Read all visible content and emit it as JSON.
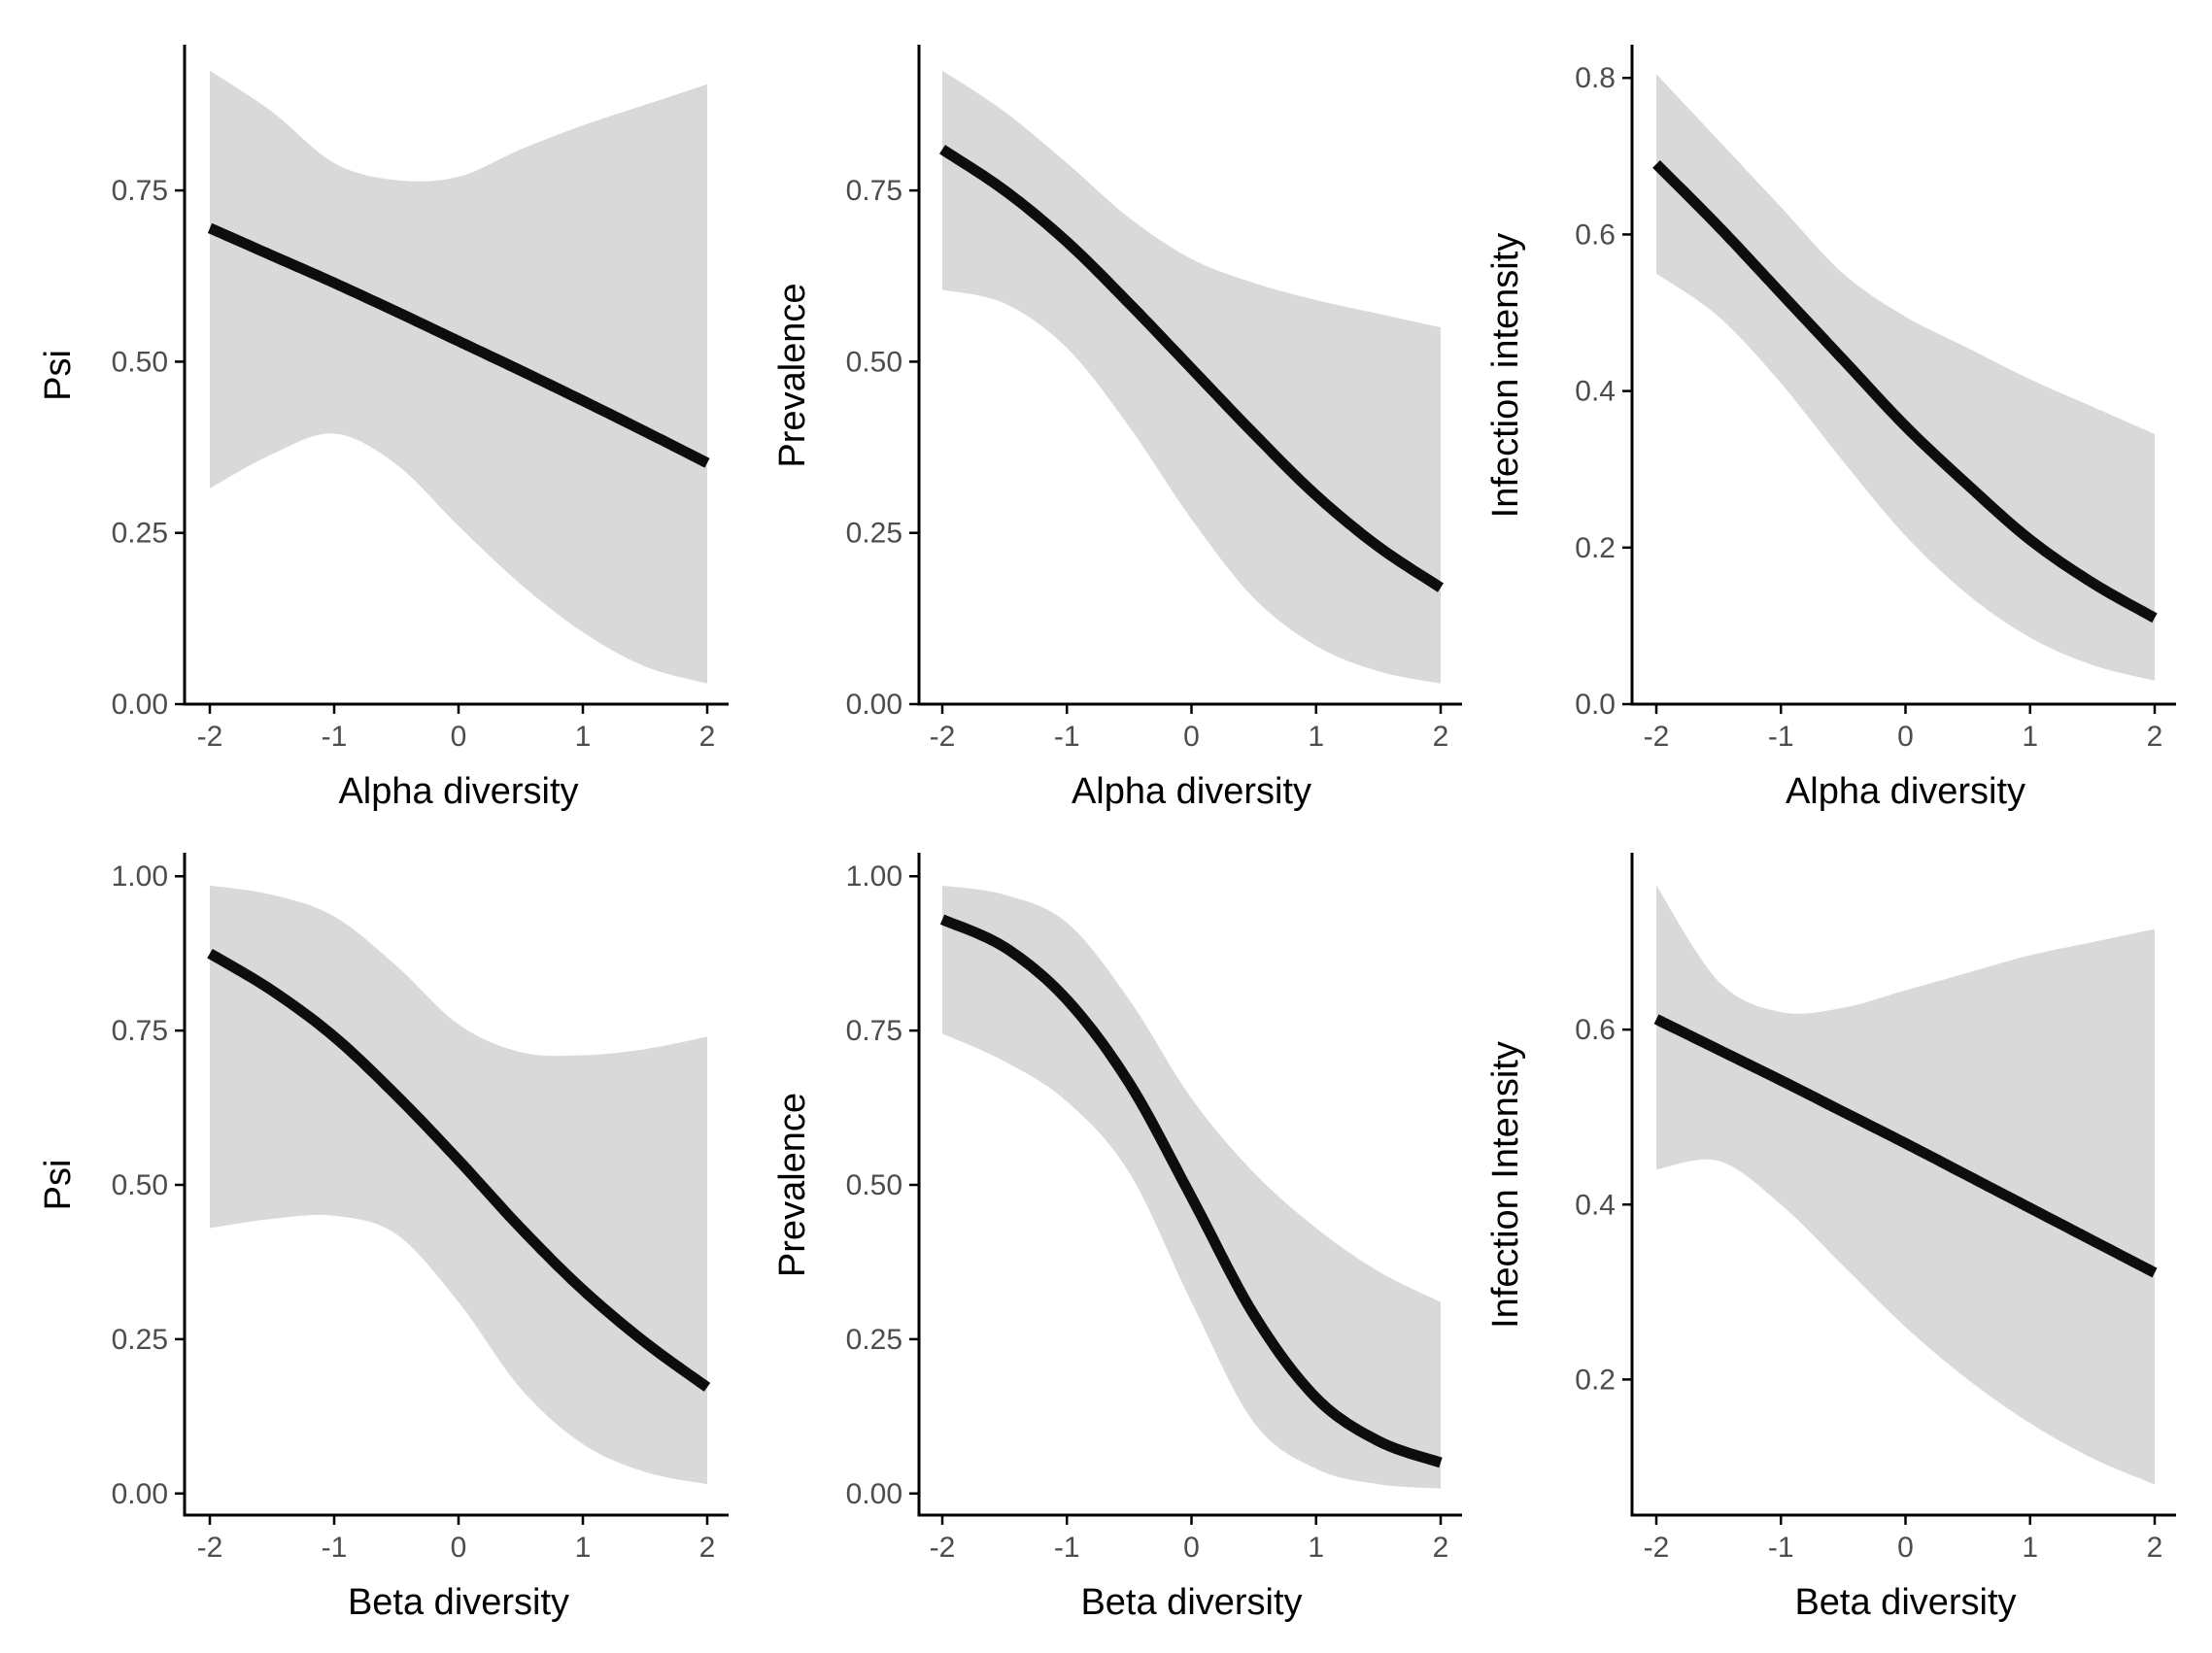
{
  "chart_data": [
    {
      "type": "line",
      "panel": "top-left",
      "xlabel": "Alpha diversity",
      "ylabel": "Psi",
      "xlim": [
        -2.2,
        2.2
      ],
      "ylim": [
        0.0,
        0.96
      ],
      "xticks": [
        -2,
        -1,
        0,
        1,
        2
      ],
      "xtick_labels": [
        "-2",
        "-1",
        "0",
        "1",
        "2"
      ],
      "yticks": [
        0.0,
        0.25,
        0.5,
        0.75
      ],
      "ytick_labels": [
        "0.00",
        "0.25",
        "0.50",
        "0.75"
      ],
      "grid": false,
      "series": [
        {
          "x": [
            -2,
            -1.5,
            -1,
            -0.5,
            0,
            0.5,
            1,
            1.5,
            2
          ],
          "y": [
            0.695,
            0.655,
            0.615,
            0.573,
            0.53,
            0.487,
            0.443,
            0.398,
            0.352
          ],
          "lower": [
            0.315,
            0.365,
            0.395,
            0.35,
            0.26,
            0.175,
            0.105,
            0.055,
            0.03
          ],
          "upper": [
            0.925,
            0.865,
            0.79,
            0.765,
            0.77,
            0.81,
            0.845,
            0.875,
            0.905
          ]
        }
      ]
    },
    {
      "type": "line",
      "panel": "top-middle",
      "xlabel": "Alpha diversity",
      "ylabel": "Prevalence",
      "xlim": [
        -2.2,
        2.2
      ],
      "ylim": [
        0.0,
        0.96
      ],
      "xticks": [
        -2,
        -1,
        0,
        1,
        2
      ],
      "xtick_labels": [
        "-2",
        "-1",
        "0",
        "1",
        "2"
      ],
      "yticks": [
        0.0,
        0.25,
        0.5,
        0.75
      ],
      "ytick_labels": [
        "0.00",
        "0.25",
        "0.50",
        "0.75"
      ],
      "grid": false,
      "series": [
        {
          "x": [
            -2,
            -1.5,
            -1,
            -0.5,
            0,
            0.5,
            1,
            1.5,
            2
          ],
          "y": [
            0.81,
            0.75,
            0.675,
            0.585,
            0.49,
            0.395,
            0.305,
            0.23,
            0.17
          ],
          "lower": [
            0.605,
            0.585,
            0.52,
            0.405,
            0.27,
            0.155,
            0.085,
            0.048,
            0.03
          ],
          "upper": [
            0.925,
            0.865,
            0.79,
            0.71,
            0.65,
            0.615,
            0.59,
            0.57,
            0.55
          ]
        }
      ]
    },
    {
      "type": "line",
      "panel": "top-right",
      "xlabel": "Alpha diversity",
      "ylabel": "Infection intensity",
      "xlim": [
        -2.2,
        2.2
      ],
      "ylim": [
        0.0,
        0.84
      ],
      "xticks": [
        -2,
        -1,
        0,
        1,
        2
      ],
      "xtick_labels": [
        "-2",
        "-1",
        "0",
        "1",
        "2"
      ],
      "yticks": [
        0.0,
        0.2,
        0.4,
        0.6,
        0.8
      ],
      "ytick_labels": [
        "0.0",
        "0.2",
        "0.4",
        "0.6",
        "0.8"
      ],
      "grid": false,
      "series": [
        {
          "x": [
            -2,
            -1.5,
            -1,
            -0.5,
            0,
            0.5,
            1,
            1.5,
            2
          ],
          "y": [
            0.69,
            0.61,
            0.525,
            0.44,
            0.355,
            0.28,
            0.21,
            0.155,
            0.11
          ],
          "lower": [
            0.55,
            0.495,
            0.41,
            0.31,
            0.215,
            0.14,
            0.085,
            0.05,
            0.03
          ],
          "upper": [
            0.805,
            0.72,
            0.635,
            0.55,
            0.495,
            0.455,
            0.415,
            0.38,
            0.345
          ]
        }
      ]
    },
    {
      "type": "line",
      "panel": "bottom-left",
      "xlabel": "Beta diversity",
      "ylabel": "Psi",
      "xlim": [
        -2.2,
        2.2
      ],
      "ylim": [
        -0.035,
        1.035
      ],
      "xticks": [
        -2,
        -1,
        0,
        1,
        2
      ],
      "xtick_labels": [
        "-2",
        "-1",
        "0",
        "1",
        "2"
      ],
      "yticks": [
        0.0,
        0.25,
        0.5,
        0.75,
        1.0
      ],
      "ytick_labels": [
        "0.00",
        "0.25",
        "0.50",
        "0.75",
        "1.00"
      ],
      "grid": false,
      "series": [
        {
          "x": [
            -2,
            -1.5,
            -1,
            -0.5,
            0,
            0.5,
            1,
            1.5,
            2
          ],
          "y": [
            0.875,
            0.815,
            0.74,
            0.645,
            0.54,
            0.43,
            0.33,
            0.245,
            0.172
          ],
          "lower": [
            0.43,
            0.445,
            0.45,
            0.42,
            0.31,
            0.17,
            0.08,
            0.035,
            0.015
          ],
          "upper": [
            0.985,
            0.97,
            0.935,
            0.855,
            0.76,
            0.715,
            0.71,
            0.72,
            0.74
          ]
        }
      ]
    },
    {
      "type": "line",
      "panel": "bottom-middle",
      "xlabel": "Beta diversity",
      "ylabel": "Prevalence",
      "xlim": [
        -2.2,
        2.2
      ],
      "ylim": [
        -0.035,
        1.035
      ],
      "xticks": [
        -2,
        -1,
        0,
        1,
        2
      ],
      "xtick_labels": [
        "-2",
        "-1",
        "0",
        "1",
        "2"
      ],
      "yticks": [
        0.0,
        0.25,
        0.5,
        0.75,
        1.0
      ],
      "ytick_labels": [
        "0.00",
        "0.25",
        "0.50",
        "0.75",
        "1.00"
      ],
      "grid": false,
      "series": [
        {
          "x": [
            -2,
            -1.5,
            -1,
            -0.5,
            0,
            0.5,
            1,
            1.5,
            2
          ],
          "y": [
            0.93,
            0.885,
            0.8,
            0.665,
            0.48,
            0.29,
            0.155,
            0.085,
            0.05
          ],
          "lower": [
            0.745,
            0.7,
            0.635,
            0.52,
            0.31,
            0.115,
            0.04,
            0.015,
            0.008
          ],
          "upper": [
            0.985,
            0.97,
            0.925,
            0.8,
            0.64,
            0.52,
            0.43,
            0.36,
            0.31
          ]
        }
      ]
    },
    {
      "type": "line",
      "panel": "bottom-right",
      "xlabel": "Beta diversity",
      "ylabel": "Infection Intensity",
      "xlim": [
        -2.2,
        2.2
      ],
      "ylim": [
        0.045,
        0.8
      ],
      "xticks": [
        -2,
        -1,
        0,
        1,
        2
      ],
      "xtick_labels": [
        "-2",
        "-1",
        "0",
        "1",
        "2"
      ],
      "yticks": [
        0.2,
        0.4,
        0.6
      ],
      "ytick_labels": [
        "0.2",
        "0.4",
        "0.6"
      ],
      "grid": false,
      "series": [
        {
          "x": [
            -2,
            -1.5,
            -1,
            -0.5,
            0,
            0.5,
            1,
            1.5,
            2
          ],
          "y": [
            0.612,
            0.577,
            0.542,
            0.506,
            0.47,
            0.433,
            0.396,
            0.359,
            0.322
          ],
          "lower": [
            0.44,
            0.45,
            0.4,
            0.33,
            0.26,
            0.2,
            0.15,
            0.11,
            0.08
          ],
          "upper": [
            0.765,
            0.655,
            0.62,
            0.625,
            0.645,
            0.665,
            0.685,
            0.7,
            0.715
          ]
        }
      ]
    }
  ],
  "style": {
    "ribbon_color": "#d9d9d9",
    "line_color": "#0d0d0d",
    "axis_color": "#000000",
    "tick_label_color": "#4d4d4d",
    "background": "#ffffff"
  }
}
